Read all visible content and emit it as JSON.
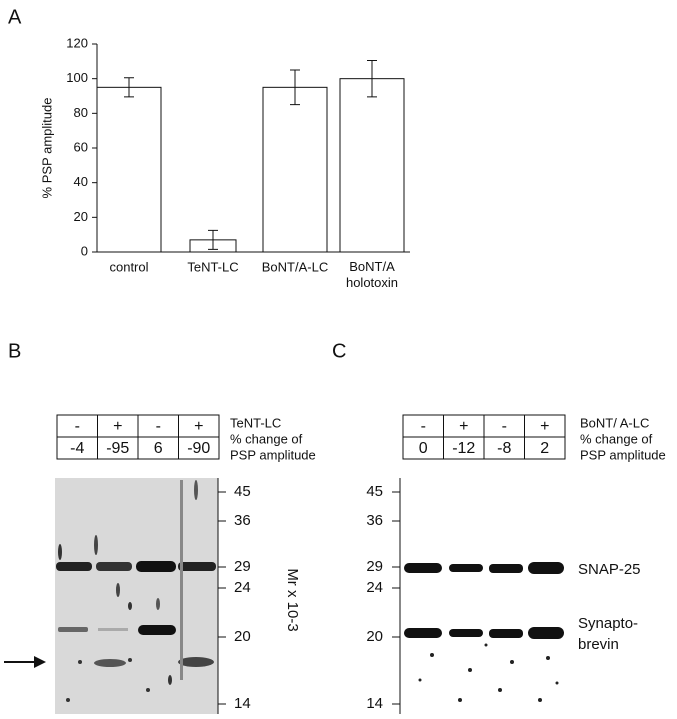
{
  "chart_data": {
    "type": "bar",
    "panel": "A",
    "y_label": "% PSP amplitude",
    "categories": [
      "control",
      "TeNT-LC",
      "BoNT/A-LC",
      "BoNT/A holotoxin"
    ],
    "values": [
      95,
      7,
      95,
      100
    ],
    "errors": [
      5.5,
      5.5,
      10,
      10.5
    ],
    "color": "#ffffff",
    "edge_color": "#111111",
    "ylim": [
      0,
      120
    ],
    "yticks": [
      0,
      20,
      40,
      60,
      80,
      100,
      120
    ],
    "grid": false
  },
  "panel_b": {
    "label": "B",
    "table": {
      "rows": [
        [
          "-",
          "+",
          "-",
          "+"
        ],
        [
          "-4",
          "-95",
          "6",
          "-90"
        ]
      ]
    },
    "row_labels": [
      [
        "TeNT-LC"
      ],
      [
        "% change of",
        "PSP amplitude"
      ]
    ],
    "markers": [
      "45",
      "36",
      "29",
      "24",
      "20",
      "14"
    ],
    "axis_label": "Mr x 10-3"
  },
  "panel_c": {
    "label": "C",
    "table": {
      "rows": [
        [
          "-",
          "+",
          "-",
          "+"
        ],
        [
          "0",
          "-12",
          "-8",
          "2"
        ]
      ]
    },
    "row_labels": [
      [
        "BoNT/ A-LC"
      ],
      [
        "% change of",
        "PSP amplitude"
      ]
    ],
    "markers": [
      "45",
      "36",
      "29",
      "24",
      "20",
      "14"
    ],
    "band_labels": [
      [
        "SNAP-25"
      ],
      [
        "Synapto-",
        "brevin"
      ]
    ]
  }
}
